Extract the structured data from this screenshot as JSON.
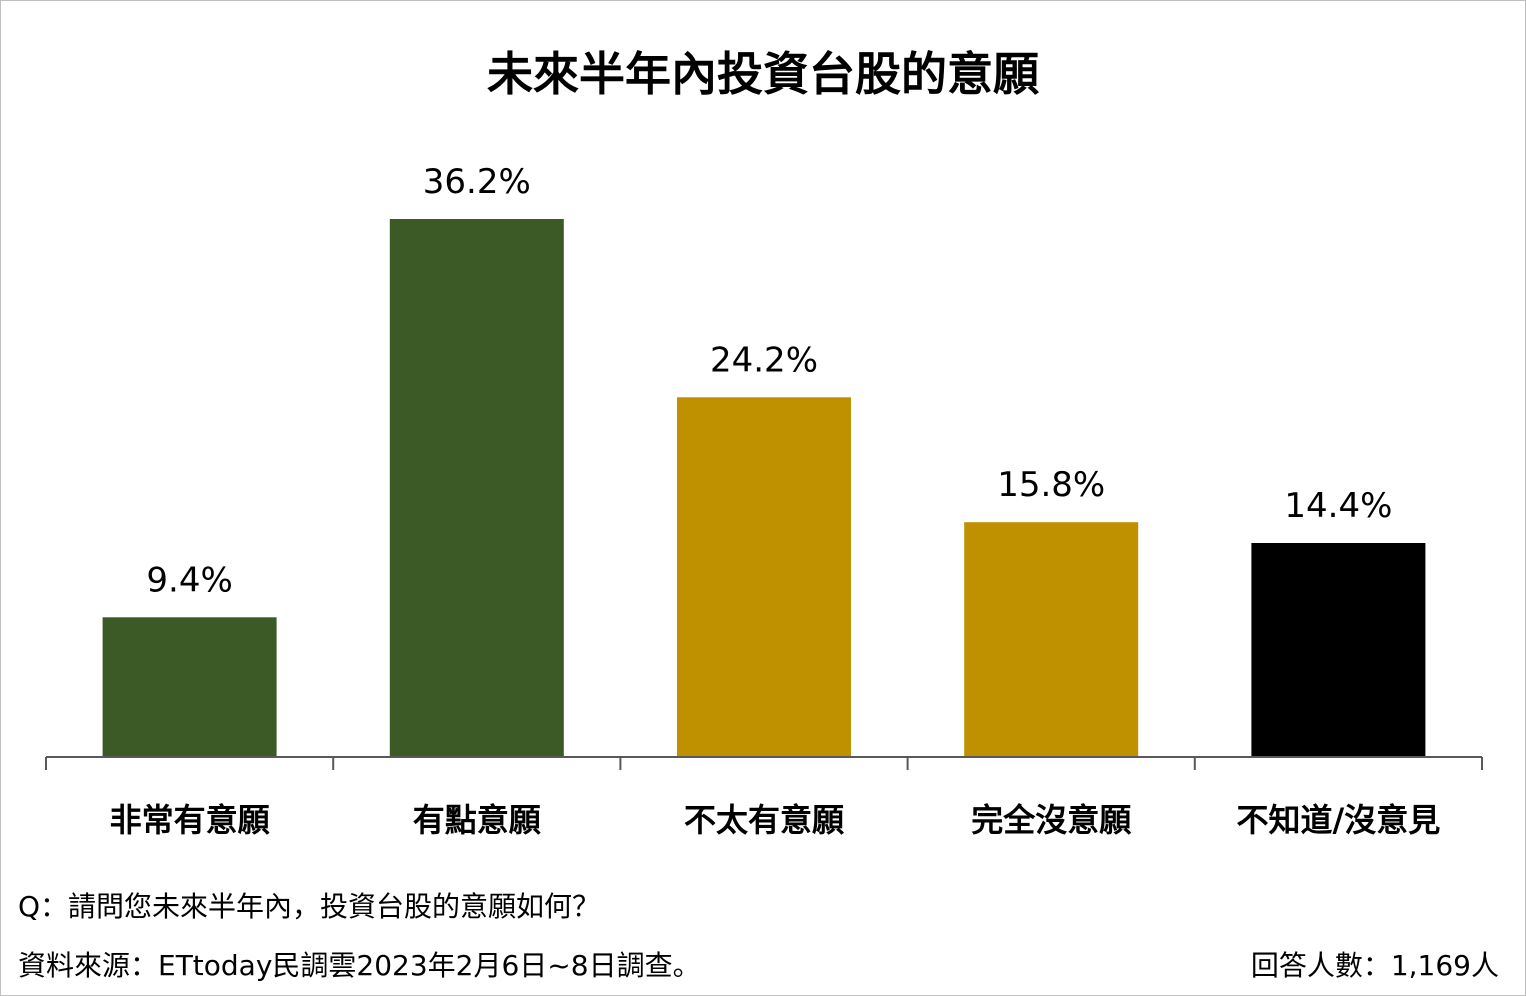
{
  "chart_data": {
    "type": "bar",
    "title": "未來半年內投資台股的意願",
    "categories": [
      "非常有意願",
      "有點意願",
      "不太有意願",
      "完全沒意願",
      "不知道/沒意見"
    ],
    "values": [
      9.4,
      36.2,
      24.2,
      15.8,
      14.4
    ],
    "value_labels": [
      "9.4%",
      "36.2%",
      "24.2%",
      "15.8%",
      "14.4%"
    ],
    "colors": [
      "#3b5a25",
      "#3b5a25",
      "#bf9000",
      "#bf9000",
      "#000000"
    ],
    "ylim": [
      0,
      40
    ],
    "grid": false,
    "legend": "none"
  },
  "footer": {
    "question": "Q：請問您未來半年內，投資台股的意願如何？",
    "source": "資料來源：ETtoday民調雲2023年2月6日~8日調查。",
    "respondents": "回答人數：1,169人"
  }
}
